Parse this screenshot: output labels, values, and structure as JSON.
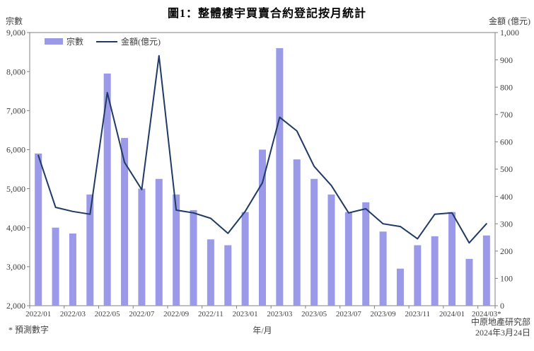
{
  "title": "圖1：整體樓宇買賣合約登記按月統計",
  "left_axis_unit": "宗數",
  "right_axis_unit": "金額 (億元)",
  "x_axis_title": "年/月",
  "footnote": "* 預測數字",
  "source": {
    "organization": "中原地產研究部",
    "date": "2024年3月24日"
  },
  "legend": {
    "bars_label": "宗數",
    "line_label": "金額(億元)"
  },
  "colors": {
    "bar": "#9a9ae8",
    "line": "#1f3a64",
    "axis": "#808080",
    "text": "#3f3f3f"
  },
  "chart_data": {
    "type": "bar",
    "subtype": "bar-left-axis + line-right-axis combo",
    "categories": [
      "2022/01",
      "2022/02",
      "2022/03",
      "2022/04",
      "2022/05",
      "2022/06",
      "2022/07",
      "2022/08",
      "2022/09",
      "2022/10",
      "2022/11",
      "2022/12",
      "2023/01",
      "2023/02",
      "2023/03",
      "2023/04",
      "2023/05",
      "2023/06",
      "2023/07",
      "2023/08",
      "2023/09",
      "2023/10",
      "2023/11",
      "2023/12",
      "2024/01",
      "2024/02",
      "2024/03*"
    ],
    "x_tick_labels": [
      "2022/01",
      "2022/03",
      "2022/05",
      "2022/07",
      "2022/09",
      "2022/11",
      "2023/01",
      "2023/03",
      "2023/05",
      "2023/07",
      "2023/09",
      "2023/11",
      "2024/01",
      "2024/03*"
    ],
    "series": [
      {
        "name": "宗數",
        "type": "bar",
        "axis": "left",
        "values": [
          5900,
          4000,
          3850,
          4850,
          7950,
          6300,
          5000,
          5250,
          4850,
          4450,
          3700,
          3550,
          4400,
          6000,
          8600,
          5750,
          5250,
          4850,
          4400,
          4650,
          3900,
          2950,
          3550,
          3780,
          4400,
          3200,
          3800
        ]
      },
      {
        "name": "金額(億元)",
        "type": "line",
        "axis": "right",
        "values": [
          550,
          360,
          345,
          335,
          780,
          525,
          425,
          915,
          350,
          340,
          320,
          265,
          345,
          450,
          690,
          640,
          510,
          440,
          340,
          355,
          300,
          290,
          245,
          335,
          340,
          230,
          300
        ]
      }
    ],
    "left_axis": {
      "min": 2000,
      "max": 9000,
      "step": 1000
    },
    "right_axis": {
      "min": 0,
      "max": 1000,
      "step": 100
    },
    "grid": false,
    "legend_position": "top-left-inside",
    "note": "2024/03 value is a forecast (marked *)"
  }
}
